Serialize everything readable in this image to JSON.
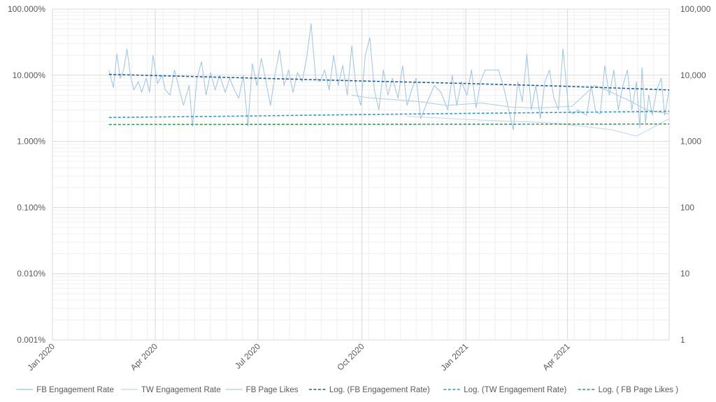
{
  "chart_data": {
    "type": "line",
    "title": "",
    "xlabel": "",
    "ylabel": "",
    "x_axis": {
      "type": "date",
      "range": [
        "2020-01-01",
        "2021-06-30"
      ],
      "tick_labels": [
        "Jan 2020",
        "Apr 2020",
        "Jul 2020",
        "Oct 2020",
        "Jan 2021",
        "Apr 2021"
      ],
      "tick_dates": [
        "2020-01-01",
        "2020-04-01",
        "2020-07-01",
        "2020-10-01",
        "2021-01-01",
        "2021-04-01"
      ]
    },
    "y_axis_left": {
      "scale": "log",
      "range": [
        0.001,
        100
      ],
      "unit": "%",
      "tick_values": [
        0.001,
        0.01,
        0.1,
        1,
        10,
        100
      ],
      "tick_labels": [
        "0.001%",
        "0.010%",
        "0.100%",
        "1.000%",
        "10.000%",
        "100.000%"
      ]
    },
    "y_axis_right": {
      "scale": "log",
      "range": [
        1,
        100000
      ],
      "tick_values": [
        1,
        10,
        100,
        1000,
        10000,
        100000
      ],
      "tick_labels": [
        "1",
        "10",
        "100",
        "1,000",
        "10,000",
        "100,000"
      ]
    },
    "grid": true,
    "legend_position": "bottom",
    "series": [
      {
        "name": "FB Engagement Rate",
        "axis": "left",
        "color": "#9dc3e6",
        "style": "solid",
        "points": [
          [
            "2020-02-20",
            12
          ],
          [
            "2020-02-24",
            6.5
          ],
          [
            "2020-02-27",
            21
          ],
          [
            "2020-03-01",
            9
          ],
          [
            "2020-03-04",
            12
          ],
          [
            "2020-03-07",
            25
          ],
          [
            "2020-03-10",
            10
          ],
          [
            "2020-03-13",
            6
          ],
          [
            "2020-03-17",
            8
          ],
          [
            "2020-03-20",
            5.5
          ],
          [
            "2020-03-24",
            9
          ],
          [
            "2020-03-27",
            5.5
          ],
          [
            "2020-03-30",
            20
          ],
          [
            "2020-04-03",
            7.5
          ],
          [
            "2020-04-07",
            10
          ],
          [
            "2020-04-10",
            6
          ],
          [
            "2020-04-14",
            5
          ],
          [
            "2020-04-18",
            12
          ],
          [
            "2020-04-22",
            6.5
          ],
          [
            "2020-04-26",
            3.5
          ],
          [
            "2020-05-01",
            7
          ],
          [
            "2020-05-04",
            1.7
          ],
          [
            "2020-05-08",
            9
          ],
          [
            "2020-05-12",
            16
          ],
          [
            "2020-05-16",
            5
          ],
          [
            "2020-05-20",
            11
          ],
          [
            "2020-05-24",
            6
          ],
          [
            "2020-05-28",
            10
          ],
          [
            "2020-06-02",
            5.5
          ],
          [
            "2020-06-06",
            9
          ],
          [
            "2020-06-10",
            6
          ],
          [
            "2020-06-14",
            4.5
          ],
          [
            "2020-06-18",
            10
          ],
          [
            "2020-06-22",
            1.7
          ],
          [
            "2020-06-26",
            15
          ],
          [
            "2020-06-30",
            7
          ],
          [
            "2020-07-04",
            18
          ],
          [
            "2020-07-08",
            8
          ],
          [
            "2020-07-12",
            3.5
          ],
          [
            "2020-07-16",
            10
          ],
          [
            "2020-07-20",
            24
          ],
          [
            "2020-07-24",
            7
          ],
          [
            "2020-07-28",
            12
          ],
          [
            "2020-08-01",
            5.5
          ],
          [
            "2020-08-05",
            11
          ],
          [
            "2020-08-09",
            8
          ],
          [
            "2020-08-13",
            18
          ],
          [
            "2020-08-17",
            60
          ],
          [
            "2020-08-21",
            9
          ],
          [
            "2020-08-25",
            8
          ],
          [
            "2020-08-29",
            12
          ],
          [
            "2020-09-02",
            6
          ],
          [
            "2020-09-06",
            20
          ],
          [
            "2020-09-10",
            7
          ],
          [
            "2020-09-14",
            14
          ],
          [
            "2020-09-18",
            5
          ],
          [
            "2020-09-22",
            28
          ],
          [
            "2020-09-26",
            6
          ],
          [
            "2020-09-30",
            3.5
          ],
          [
            "2020-10-04",
            20
          ],
          [
            "2020-10-08",
            37
          ],
          [
            "2020-10-12",
            6
          ],
          [
            "2020-10-16",
            3
          ],
          [
            "2020-10-20",
            12
          ],
          [
            "2020-10-24",
            5
          ],
          [
            "2020-10-28",
            9
          ],
          [
            "2020-11-02",
            4.5
          ],
          [
            "2020-11-06",
            14
          ],
          [
            "2020-11-10",
            3.5
          ],
          [
            "2020-11-14",
            6
          ],
          [
            "2020-11-18",
            9
          ],
          [
            "2020-11-22",
            2.2
          ],
          [
            "2020-11-28",
            4
          ],
          [
            "2020-12-04",
            7
          ],
          [
            "2020-12-10",
            5.5
          ],
          [
            "2020-12-16",
            3
          ],
          [
            "2020-12-20",
            10
          ],
          [
            "2020-12-24",
            3.5
          ],
          [
            "2020-12-28",
            8
          ],
          [
            "2021-01-02",
            5
          ],
          [
            "2021-01-06",
            12
          ],
          [
            "2021-01-10",
            3.2
          ],
          [
            "2021-01-14",
            8
          ],
          [
            "2021-01-18",
            12
          ],
          [
            "2021-01-24",
            12
          ],
          [
            "2021-01-30",
            12
          ],
          [
            "2021-02-04",
            6
          ],
          [
            "2021-02-08",
            3
          ],
          [
            "2021-02-12",
            1.5
          ],
          [
            "2021-02-16",
            8
          ],
          [
            "2021-02-20",
            4
          ],
          [
            "2021-02-24",
            21
          ],
          [
            "2021-02-28",
            3
          ],
          [
            "2021-03-04",
            7
          ],
          [
            "2021-03-08",
            2.2
          ],
          [
            "2021-03-12",
            8
          ],
          [
            "2021-03-16",
            12
          ],
          [
            "2021-03-20",
            4.5
          ],
          [
            "2021-03-24",
            3
          ],
          [
            "2021-03-28",
            25
          ],
          [
            "2021-04-02",
            3
          ],
          [
            "2021-04-06",
            2.6
          ],
          [
            "2021-04-10",
            3
          ],
          [
            "2021-04-14",
            2.7
          ],
          [
            "2021-04-18",
            2.5
          ],
          [
            "2021-04-22",
            7
          ],
          [
            "2021-04-26",
            2.8
          ],
          [
            "2021-04-30",
            2.6
          ],
          [
            "2021-05-04",
            14
          ],
          [
            "2021-05-08",
            5
          ],
          [
            "2021-05-12",
            12
          ],
          [
            "2021-05-16",
            3
          ],
          [
            "2021-05-20",
            7
          ],
          [
            "2021-05-24",
            12
          ],
          [
            "2021-05-28",
            3
          ],
          [
            "2021-06-01",
            8
          ],
          [
            "2021-06-04",
            1.6
          ],
          [
            "2021-06-06",
            13
          ],
          [
            "2021-06-09",
            1.9
          ],
          [
            "2021-06-12",
            5
          ],
          [
            "2021-06-15",
            2.5
          ],
          [
            "2021-06-19",
            6
          ],
          [
            "2021-06-23",
            9
          ],
          [
            "2021-06-26",
            2.5
          ],
          [
            "2021-06-30",
            6
          ]
        ]
      },
      {
        "name": "TW Engagement Rate",
        "axis": "left",
        "color": "#bdd7ee",
        "style": "solid",
        "points": [
          [
            "2020-11-10",
            2.4
          ],
          [
            "2021-01-15",
            2.1
          ],
          [
            "2021-03-20",
            1.9
          ],
          [
            "2021-05-10",
            1.5
          ],
          [
            "2021-06-01",
            1.2
          ],
          [
            "2021-06-15",
            1.6
          ],
          [
            "2021-06-30",
            2.2
          ]
        ]
      },
      {
        "name": "FB Page Likes",
        "axis": "right",
        "color": "#a9cde3",
        "style": "solid",
        "points": [
          [
            "2020-09-22",
            5000
          ],
          [
            "2020-10-05",
            4600
          ],
          [
            "2020-11-20",
            4000
          ],
          [
            "2020-12-15",
            3500
          ],
          [
            "2021-01-15",
            3800
          ],
          [
            "2021-02-10",
            3300
          ],
          [
            "2021-03-05",
            3200
          ],
          [
            "2021-04-05",
            3400
          ],
          [
            "2021-04-25",
            7000
          ],
          [
            "2021-05-10",
            5500
          ],
          [
            "2021-05-25",
            4200
          ],
          [
            "2021-06-10",
            3000
          ],
          [
            "2021-06-30",
            2600
          ]
        ]
      },
      {
        "name": "Log. (FB Engagement Rate)",
        "axis": "left",
        "color": "#1f5f9e",
        "style": "dashed",
        "points": [
          [
            "2020-02-20",
            10.3
          ],
          [
            "2020-06-01",
            9.3
          ],
          [
            "2020-10-01",
            8.2
          ],
          [
            "2021-01-01",
            7.5
          ],
          [
            "2021-04-01",
            6.8
          ],
          [
            "2021-06-30",
            6.0
          ]
        ]
      },
      {
        "name": "Log. (TW Engagement Rate)",
        "axis": "left",
        "color": "#2e9bd6",
        "style": "dashed",
        "points": [
          [
            "2020-02-20",
            2.3
          ],
          [
            "2020-06-01",
            2.4
          ],
          [
            "2020-10-01",
            2.55
          ],
          [
            "2021-01-01",
            2.65
          ],
          [
            "2021-04-01",
            2.75
          ],
          [
            "2021-06-30",
            2.85
          ]
        ]
      },
      {
        "name": "Log. ( FB Page Likes )",
        "axis": "left",
        "color": "#2e9e4f",
        "style": "dashed",
        "points": [
          [
            "2020-02-20",
            1.8
          ],
          [
            "2021-06-30",
            1.83
          ]
        ]
      }
    ]
  }
}
